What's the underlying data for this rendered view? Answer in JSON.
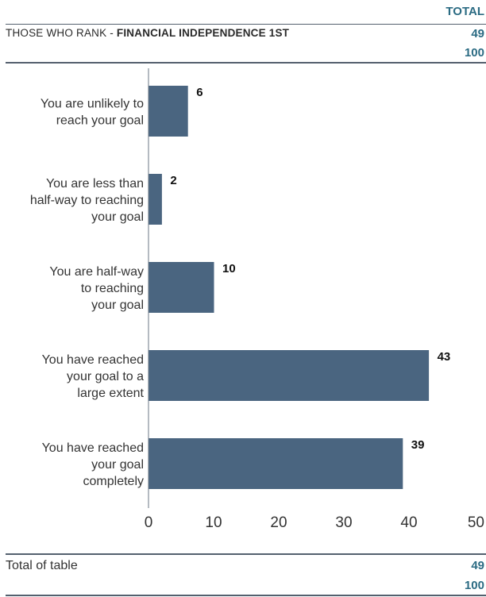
{
  "header": {
    "total_label": "TOTAL",
    "subtitle_prefix": "THOSE WHO RANK - ",
    "subtitle_bold": "FINANCIAL INDEPENDENCE 1ST",
    "count": "49",
    "percent": "100"
  },
  "chart_data": {
    "type": "bar",
    "orientation": "horizontal",
    "categories": [
      [
        "You are unlikely to",
        "reach your goal"
      ],
      [
        "You are less than",
        "half-way to reaching",
        "your goal"
      ],
      [
        "You are half-way",
        "to reaching",
        "your goal"
      ],
      [
        "You have reached",
        "your goal to a",
        "large extent"
      ],
      [
        "You have reached",
        "your goal",
        "completely"
      ]
    ],
    "values": [
      6,
      2,
      10,
      43,
      39
    ],
    "xlim": [
      0,
      50
    ],
    "xticks": [
      0,
      10,
      20,
      30,
      40,
      50
    ],
    "bar_color": "#4a6580",
    "grid": false
  },
  "footer": {
    "label": "Total of table",
    "count": "49",
    "percent": "100"
  },
  "colors": {
    "accent": "#2b6b83",
    "bar": "#4a6580",
    "rule": "#54606e"
  }
}
